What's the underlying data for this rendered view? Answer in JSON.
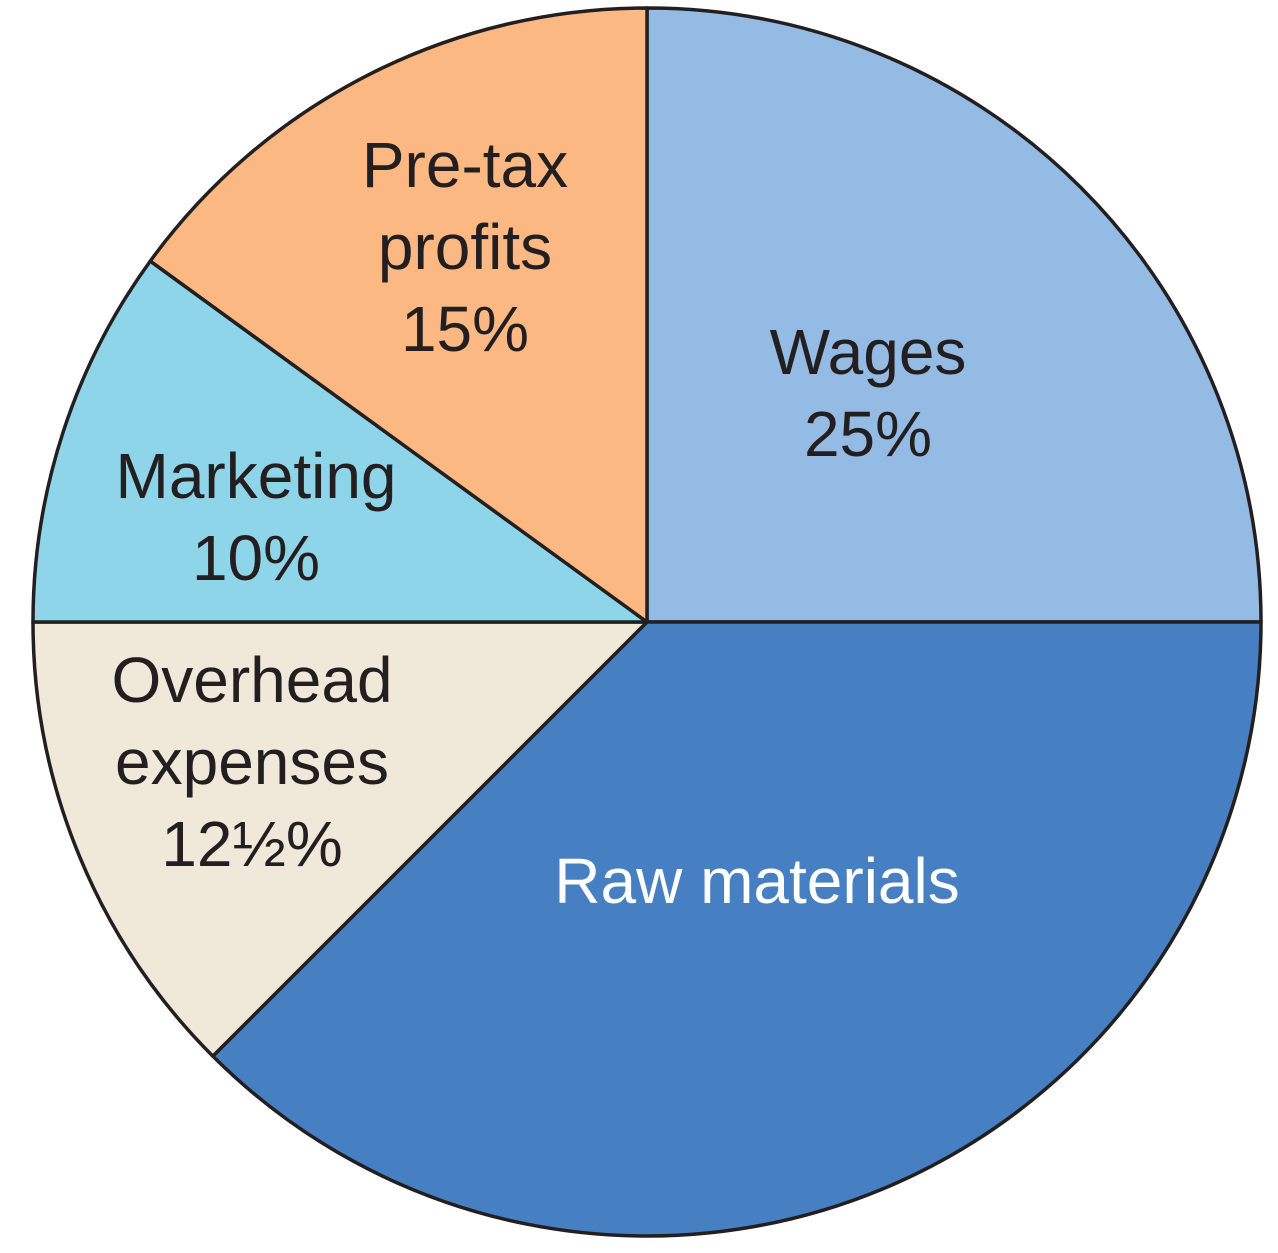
{
  "chart_data": {
    "type": "pie",
    "start_angle": "12 o'clock",
    "direction": "clockwise",
    "slices": [
      {
        "name": "Wages",
        "value": 25,
        "color": "#94bbe3",
        "label_color": "#231f20",
        "label_lines": [
          "Wages",
          "25%"
        ]
      },
      {
        "name": "Raw materials",
        "value": 37.5,
        "color": "#467fc2",
        "label_color": "#ffffff",
        "label_lines": [
          "Raw materials"
        ]
      },
      {
        "name": "Overhead expenses",
        "value": 12.5,
        "color": "#f0e8d9",
        "label_color": "#231f20",
        "label_lines": [
          "Overhead",
          "expenses",
          "12½%"
        ]
      },
      {
        "name": "Marketing",
        "value": 10,
        "color": "#8fd5e9",
        "label_color": "#231f20",
        "label_lines": [
          "Marketing",
          "10%"
        ]
      },
      {
        "name": "Pre-tax profits",
        "value": 15,
        "color": "#fbb883",
        "label_color": "#231f20",
        "label_lines": [
          "Pre-tax",
          "profits",
          "15%"
        ]
      }
    ]
  }
}
